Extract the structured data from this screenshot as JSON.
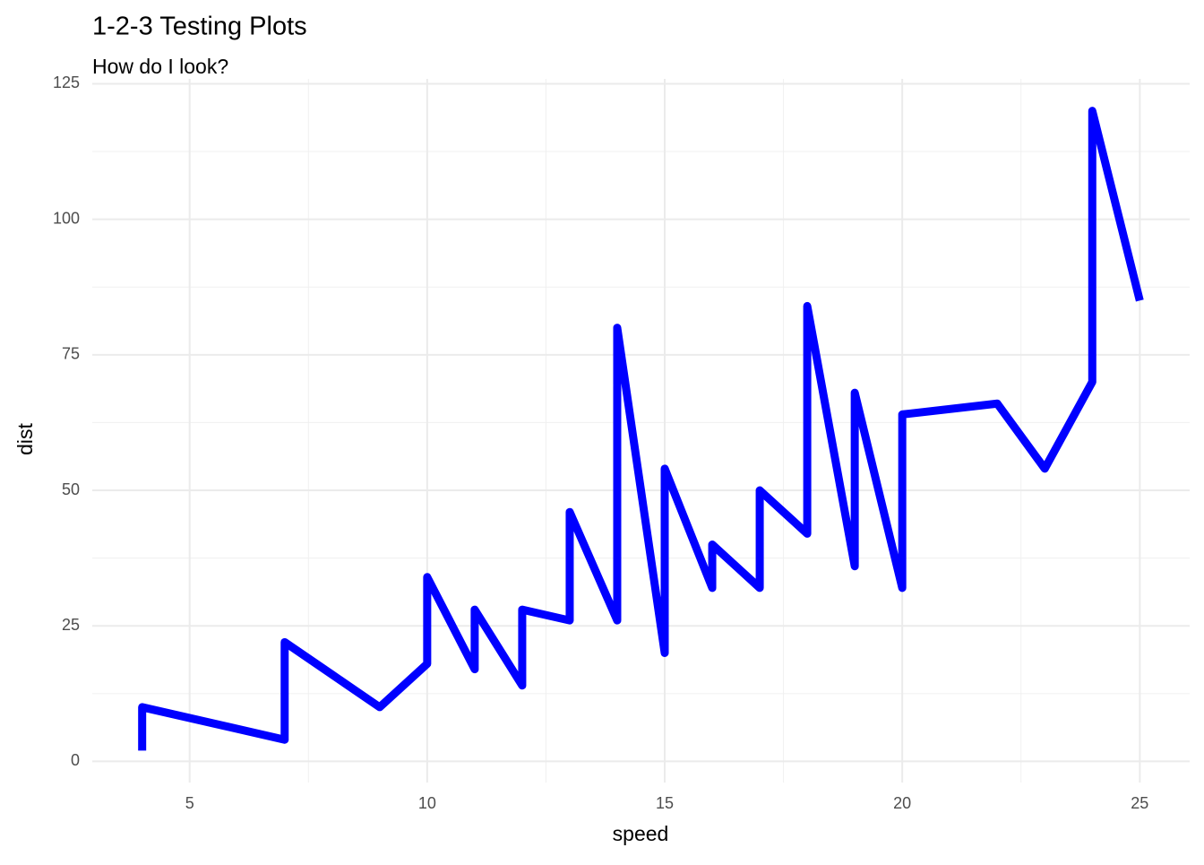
{
  "chart_data": {
    "type": "line",
    "title": "1-2-3 Testing Plots",
    "subtitle": "How do I look?",
    "x_label": "speed",
    "y_label": "dist",
    "x": [
      4,
      4,
      7,
      7,
      8,
      9,
      10,
      10,
      10,
      11,
      11,
      12,
      12,
      12,
      12,
      13,
      13,
      13,
      13,
      14,
      14,
      14,
      14,
      15,
      15,
      15,
      16,
      16,
      17,
      17,
      17,
      18,
      18,
      18,
      18,
      19,
      19,
      19,
      20,
      20,
      20,
      20,
      20,
      22,
      23,
      24,
      24,
      24,
      24,
      25
    ],
    "series": [
      {
        "name": "dist",
        "color": "#0000ff",
        "values": [
          2,
          10,
          4,
          22,
          16,
          10,
          18,
          26,
          34,
          17,
          28,
          14,
          20,
          24,
          28,
          26,
          34,
          34,
          46,
          26,
          36,
          60,
          80,
          20,
          26,
          54,
          32,
          40,
          32,
          40,
          50,
          42,
          56,
          76,
          84,
          36,
          46,
          68,
          32,
          48,
          52,
          56,
          64,
          66,
          54,
          70,
          92,
          93,
          120,
          85
        ]
      }
    ],
    "xlim": [
      2.95,
      26.05
    ],
    "ylim": [
      -3.9,
      125.9
    ],
    "xticks": [
      5,
      10,
      15,
      20,
      25
    ],
    "yticks": [
      0,
      25,
      50,
      75,
      100,
      125
    ],
    "x_minor_ticks": [
      7.5,
      12.5,
      17.5,
      22.5
    ],
    "y_minor_ticks": [
      12.5,
      37.5,
      62.5,
      87.5,
      112.5
    ],
    "grid": true
  }
}
